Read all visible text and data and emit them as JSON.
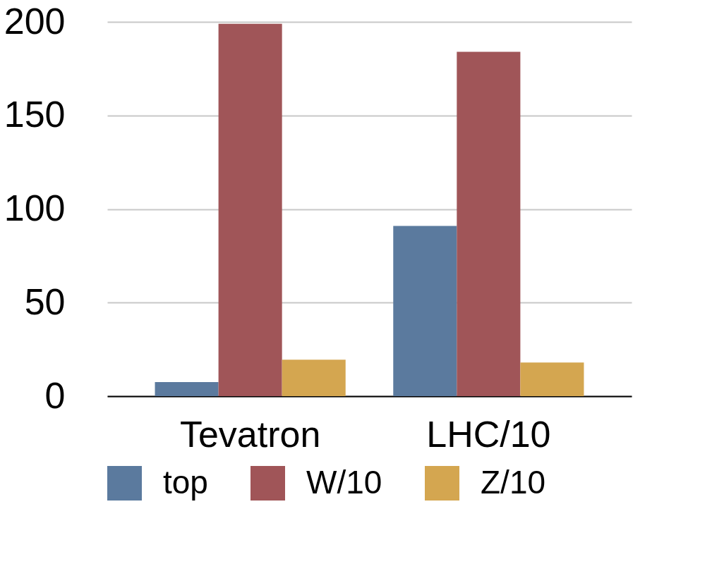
{
  "chart_data": {
    "type": "bar",
    "categories": [
      "Tevatron",
      "LHC/10"
    ],
    "series": [
      {
        "name": "top",
        "color": "#5b7a9e",
        "values": [
          7.5,
          91
        ]
      },
      {
        "name": "W/10",
        "color": "#a05558",
        "values": [
          199,
          184
        ]
      },
      {
        "name": "Z/10",
        "color": "#d4a650",
        "values": [
          19.5,
          18
        ]
      }
    ],
    "ylim": [
      0,
      200
    ],
    "yticks": [
      0,
      50,
      100,
      150,
      200
    ],
    "grid": "y",
    "legend": "bottom"
  }
}
